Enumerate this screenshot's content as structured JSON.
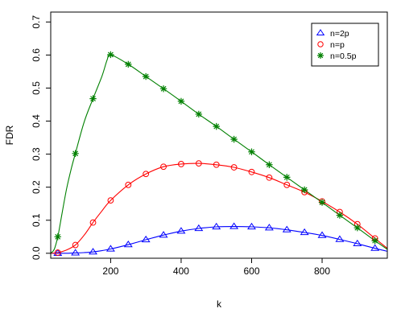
{
  "chart_data": {
    "type": "line",
    "xlabel": "k",
    "ylabel": "FDR",
    "xlim": [
      30,
      985
    ],
    "ylim": [
      -0.015,
      0.73
    ],
    "x_ticks": [
      200,
      400,
      600,
      800
    ],
    "y_ticks": [
      0.0,
      0.1,
      0.2,
      0.3,
      0.4,
      0.5,
      0.6,
      0.7
    ],
    "y_tick_labels": [
      "0.0",
      "0.1",
      "0.2",
      "0.3",
      "0.4",
      "0.5",
      "0.6",
      "0.7"
    ],
    "grid": false,
    "legend_position": "top-right",
    "x": [
      50,
      100,
      150,
      200,
      250,
      300,
      350,
      400,
      450,
      500,
      550,
      600,
      650,
      700,
      750,
      800,
      850,
      900,
      950
    ],
    "series": [
      {
        "name": "n=2p",
        "color": "#0000ff",
        "marker": "triangle",
        "values": [
          0.0,
          0.001,
          0.004,
          0.013,
          0.026,
          0.041,
          0.055,
          0.067,
          0.075,
          0.08,
          0.081,
          0.08,
          0.077,
          0.071,
          0.063,
          0.054,
          0.042,
          0.029,
          0.015
        ],
        "curve_x": [
          30,
          50,
          75,
          100,
          125,
          150,
          175,
          200,
          250,
          300,
          350,
          400,
          450,
          500,
          550,
          600,
          650,
          700,
          750,
          800,
          850,
          900,
          950,
          985
        ],
        "curve_y": [
          0.0,
          0.0,
          0.0,
          0.001,
          0.002,
          0.004,
          0.008,
          0.013,
          0.026,
          0.041,
          0.055,
          0.067,
          0.075,
          0.08,
          0.081,
          0.08,
          0.077,
          0.071,
          0.063,
          0.054,
          0.042,
          0.029,
          0.015,
          0.006
        ]
      },
      {
        "name": "n=p",
        "color": "#ff0000",
        "marker": "circle",
        "values": [
          0.002,
          0.025,
          0.093,
          0.16,
          0.207,
          0.24,
          0.262,
          0.27,
          0.272,
          0.268,
          0.26,
          0.246,
          0.229,
          0.207,
          0.185,
          0.157,
          0.125,
          0.088,
          0.045
        ],
        "curve_x": [
          30,
          50,
          75,
          100,
          125,
          150,
          175,
          200,
          250,
          300,
          350,
          400,
          450,
          500,
          550,
          600,
          650,
          700,
          750,
          800,
          850,
          900,
          950,
          985
        ],
        "curve_y": [
          0.0,
          0.002,
          0.01,
          0.025,
          0.055,
          0.093,
          0.128,
          0.16,
          0.207,
          0.24,
          0.262,
          0.27,
          0.272,
          0.268,
          0.26,
          0.246,
          0.229,
          0.207,
          0.185,
          0.157,
          0.125,
          0.088,
          0.045,
          0.015
        ]
      },
      {
        "name": "n=0.5p",
        "color": "#008000",
        "marker": "asterisk",
        "values": [
          0.05,
          0.302,
          0.468,
          0.601,
          0.572,
          0.535,
          0.498,
          0.46,
          0.421,
          0.384,
          0.345,
          0.307,
          0.268,
          0.23,
          0.192,
          0.154,
          0.115,
          0.077,
          0.038
        ],
        "curve_x": [
          30,
          40,
          50,
          62,
          75,
          88,
          100,
          125,
          150,
          175,
          190,
          200,
          250,
          300,
          350,
          400,
          450,
          500,
          550,
          600,
          650,
          700,
          750,
          800,
          850,
          900,
          950,
          985
        ],
        "curve_y": [
          0.0,
          0.012,
          0.05,
          0.12,
          0.195,
          0.255,
          0.302,
          0.398,
          0.468,
          0.535,
          0.585,
          0.601,
          0.572,
          0.535,
          0.498,
          0.46,
          0.421,
          0.384,
          0.345,
          0.307,
          0.268,
          0.23,
          0.192,
          0.154,
          0.115,
          0.077,
          0.038,
          0.012
        ]
      }
    ]
  }
}
